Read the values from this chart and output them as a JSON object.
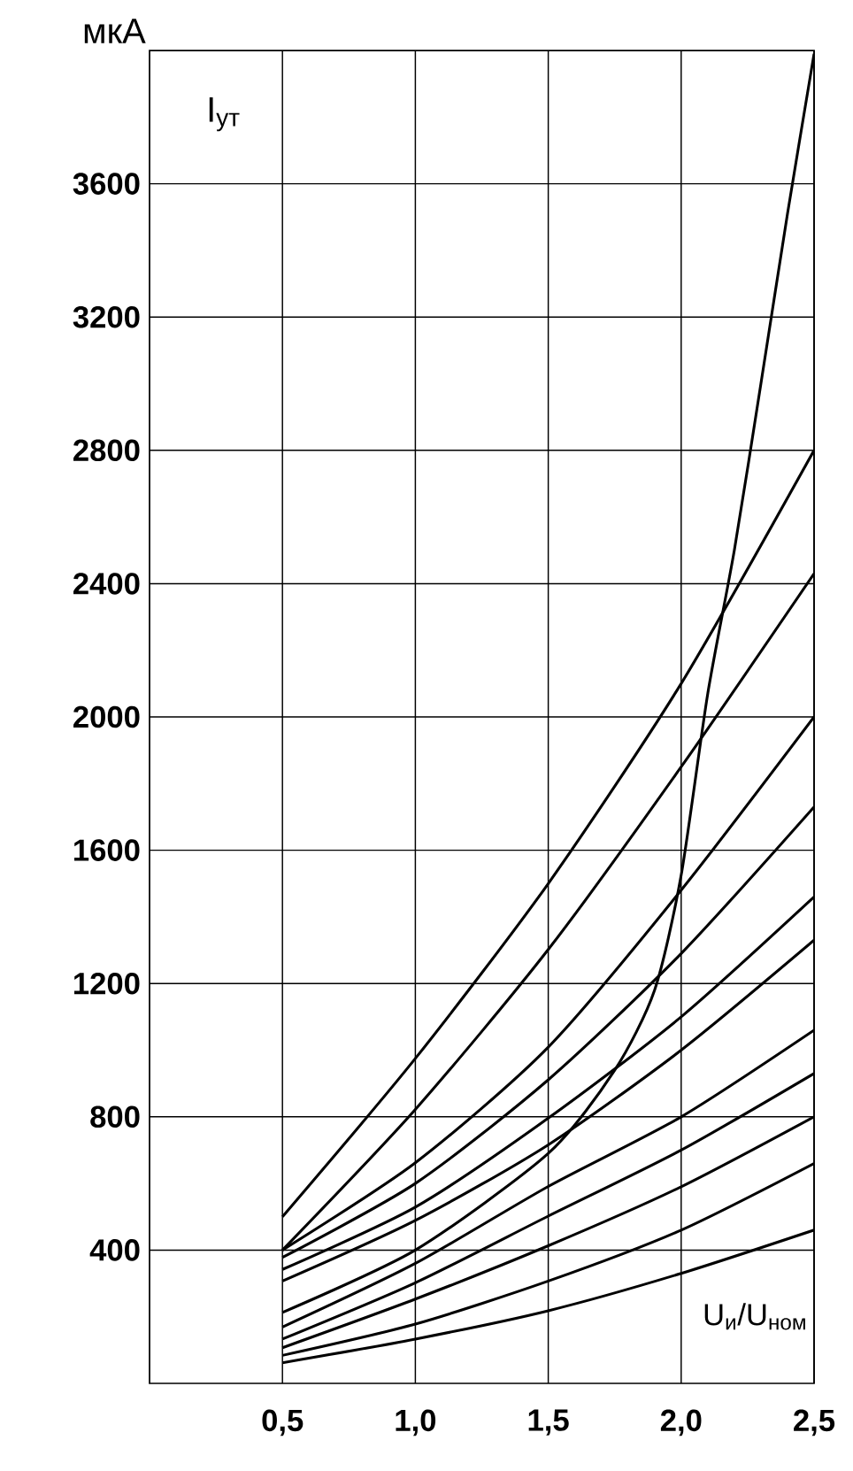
{
  "chart_data": {
    "type": "line",
    "xlabel": "U$_{и}$/U$_{ном}$",
    "ylabel": "I$_{ут}$",
    "annotations": [
      "мкА"
    ],
    "xlim": [
      0,
      2.5
    ],
    "ylim": [
      0,
      4000
    ],
    "xticks": [
      {
        "value": 0.5,
        "label": "0,5"
      },
      {
        "value": 1.0,
        "label": "1,0"
      },
      {
        "value": 1.5,
        "label": "1,5"
      },
      {
        "value": 2.0,
        "label": "2,0"
      },
      {
        "value": 2.5,
        "label": "2,5"
      }
    ],
    "yticks": [
      400,
      800,
      1200,
      1600,
      2000,
      2400,
      2800,
      3200,
      3600
    ],
    "grid": true,
    "series": [
      {
        "color": "#000000",
        "x": [
          0.5,
          1.0,
          1.5,
          2.0,
          2.5
        ],
        "values": [
          500,
          975,
          1500,
          2100,
          2800
        ]
      },
      {
        "color": "#000000",
        "x": [
          0.5,
          1.0,
          1.5,
          2.0,
          2.5
        ],
        "values": [
          400,
          822,
          1302,
          1850,
          2430
        ]
      },
      {
        "color": "#000000",
        "x": [
          0.5,
          1.0,
          1.5,
          2.0,
          2.5
        ],
        "values": [
          400,
          662,
          1009,
          1480,
          2000
        ]
      },
      {
        "color": "#000000",
        "x": [
          0.5,
          1.0,
          1.5,
          2.0,
          2.5
        ],
        "values": [
          378,
          600,
          911,
          1290,
          1730
        ]
      },
      {
        "color": "#000000",
        "x": [
          0.5,
          1.0,
          1.5,
          2.0,
          2.5
        ],
        "values": [
          342,
          529,
          796,
          1100,
          1460
        ]
      },
      {
        "color": "#000000",
        "x": [
          0.5,
          1.0,
          1.5,
          2.0,
          2.5
        ],
        "values": [
          307,
          489,
          716,
          1000,
          1330
        ]
      },
      {
        "color": "#000000",
        "x": [
          0.5,
          1.0,
          1.5,
          2.0,
          2.5
        ],
        "values": [
          169,
          360,
          591,
          800,
          1060
        ]
      },
      {
        "color": "#000000",
        "x": [
          0.5,
          1.0,
          1.5,
          2.0,
          2.5
        ],
        "values": [
          133,
          302,
          502,
          700,
          930
        ]
      },
      {
        "color": "#000000",
        "x": [
          0.5,
          1.0,
          1.5,
          2.0,
          2.5
        ],
        "values": [
          107,
          253,
          413,
          590,
          800
        ]
      },
      {
        "color": "#000000",
        "x": [
          0.5,
          1.0,
          1.5,
          2.0,
          2.5
        ],
        "values": [
          84,
          178,
          307,
          460,
          660
        ]
      },
      {
        "color": "#000000",
        "x": [
          0.5,
          1.0,
          1.5,
          2.0,
          2.5
        ],
        "values": [
          62,
          133,
          218,
          330,
          460
        ]
      },
      {
        "color": "#000000",
        "x": [
          0.5,
          1.0,
          1.5,
          1.75,
          1.9,
          2.0,
          2.1,
          2.2,
          2.3,
          2.4,
          2.5
        ],
        "values": [
          213,
          400,
          690,
          940,
          1180,
          1525,
          2070,
          2500,
          3000,
          3510,
          3990
        ]
      }
    ]
  }
}
